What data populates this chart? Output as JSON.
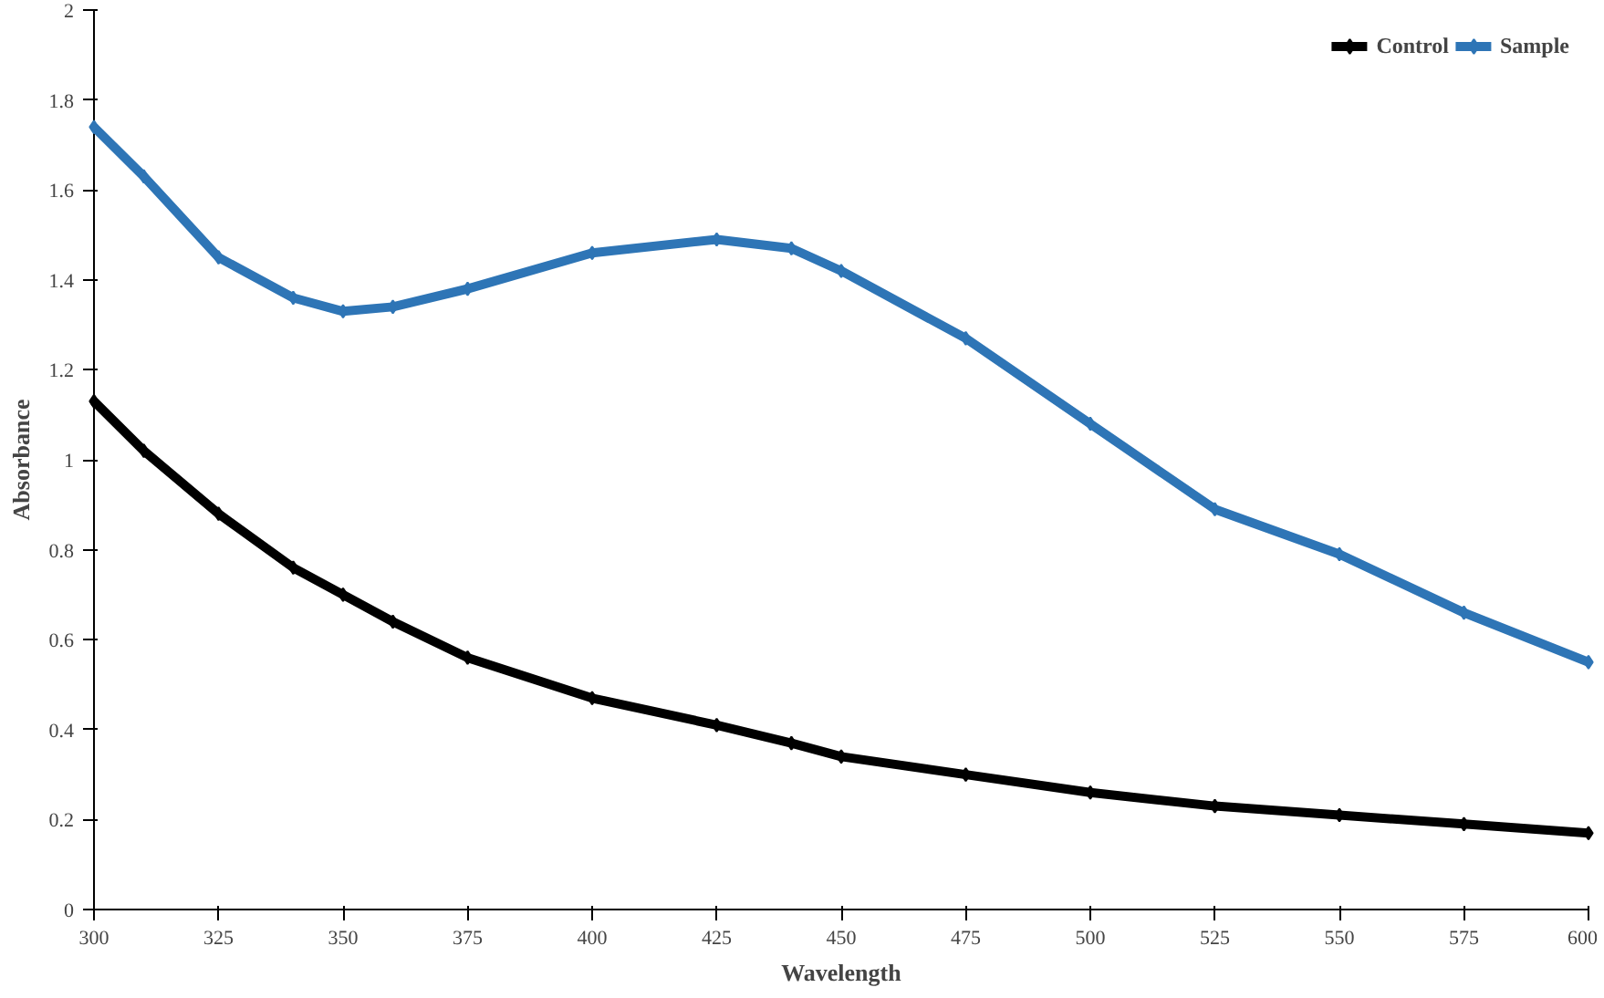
{
  "chart_data": {
    "type": "line",
    "xlabel": "Wavelength",
    "ylabel": "Absorbance",
    "x": [
      300,
      310,
      325,
      340,
      350,
      360,
      375,
      400,
      425,
      440,
      450,
      475,
      500,
      525,
      550,
      575,
      600
    ],
    "series": [
      {
        "name": "Control",
        "color": "#000000",
        "values": [
          1.13,
          1.02,
          0.88,
          0.76,
          0.7,
          0.64,
          0.56,
          0.47,
          0.41,
          0.37,
          0.34,
          0.3,
          0.26,
          0.23,
          0.21,
          0.19,
          0.17
        ]
      },
      {
        "name": "Sample",
        "color": "#2e75b6",
        "values": [
          1.74,
          1.63,
          1.45,
          1.36,
          1.33,
          1.34,
          1.38,
          1.46,
          1.49,
          1.47,
          1.42,
          1.27,
          1.08,
          0.89,
          0.79,
          0.66,
          0.55
        ]
      }
    ],
    "xlim": [
      300,
      600
    ],
    "xticks": [
      300,
      325,
      350,
      375,
      400,
      425,
      450,
      475,
      500,
      525,
      550,
      575,
      600
    ],
    "ylim": [
      0,
      2
    ],
    "yticks": [
      0,
      0.2,
      0.4,
      0.6,
      0.8,
      1,
      1.2,
      1.4,
      1.6,
      1.8,
      2
    ],
    "grid": false,
    "legend": "top right",
    "marker": "diamond",
    "line_style": "solid"
  }
}
